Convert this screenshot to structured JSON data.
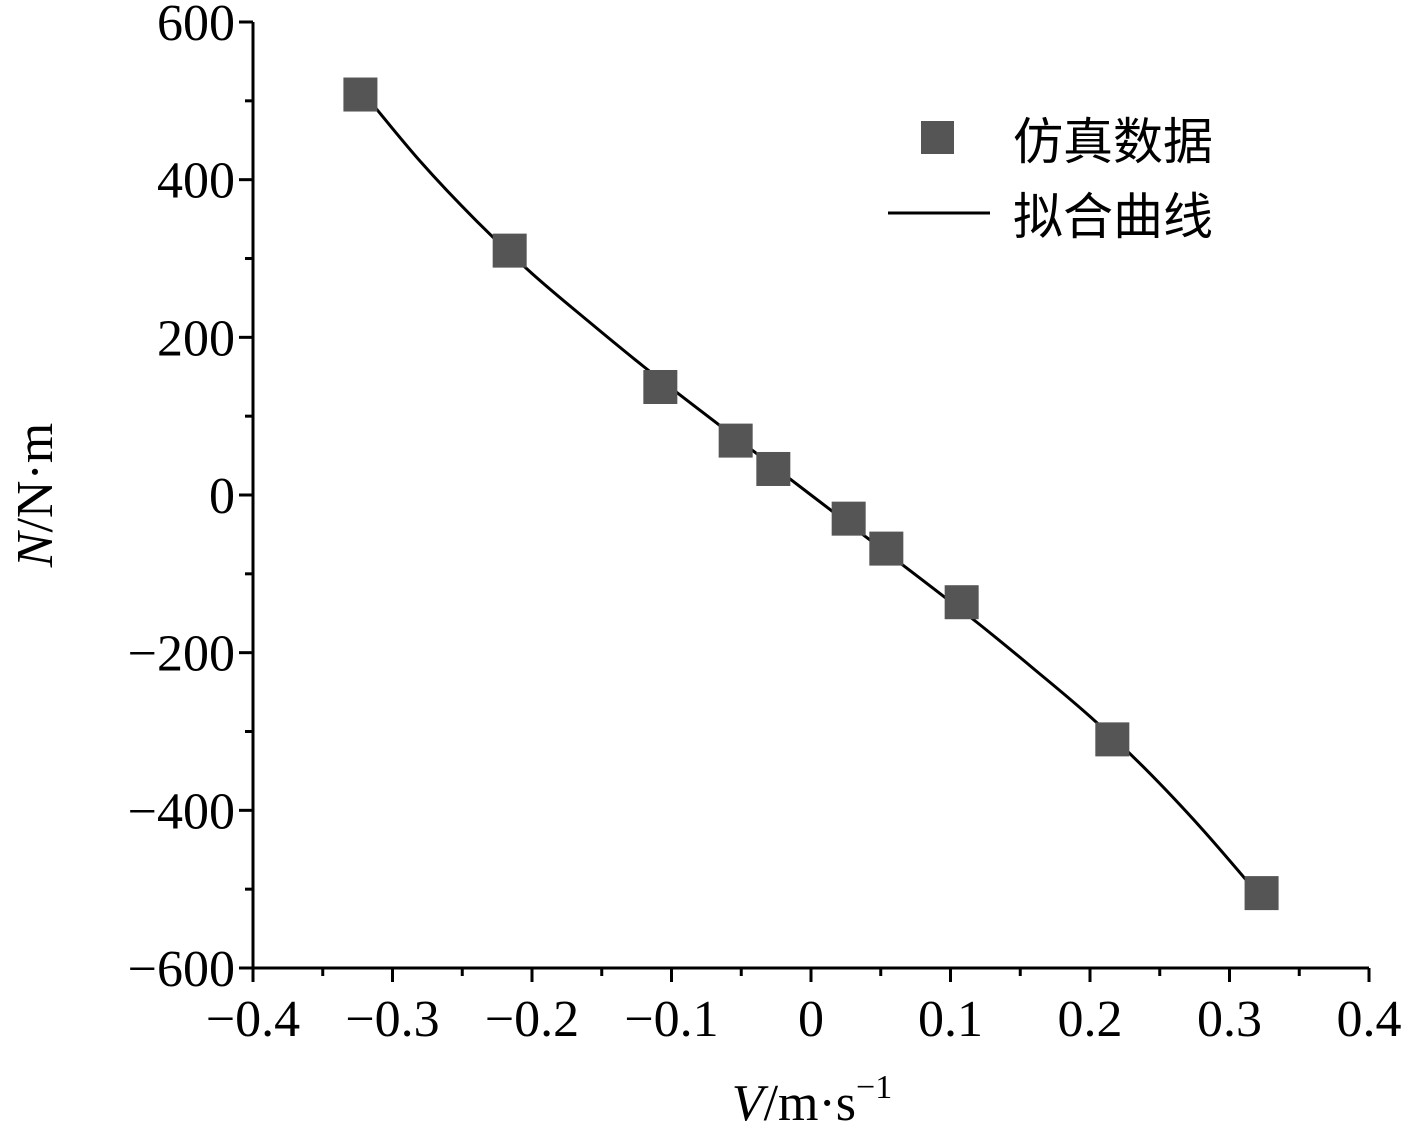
{
  "chart_data": {
    "type": "scatter",
    "title": "",
    "xlabel": {
      "symbol": "V",
      "unit": "/m·s",
      "unit_exponent": "−1"
    },
    "ylabel": {
      "symbol": "N",
      "unit": "/N·m"
    },
    "xlim": [
      -0.4,
      0.4
    ],
    "ylim": [
      -600,
      600
    ],
    "x_ticks": [
      -0.4,
      -0.3,
      -0.2,
      -0.1,
      0,
      0.1,
      0.2,
      0.3,
      0.4
    ],
    "x_tick_labels": [
      "−0.4",
      "−0.3",
      "−0.2",
      "−0.1",
      "0",
      "0.1",
      "0.2",
      "0.3",
      "0.4"
    ],
    "y_ticks": [
      600,
      400,
      200,
      0,
      -200,
      -400,
      -600
    ],
    "y_tick_labels": [
      "600",
      "400",
      "200",
      "0",
      "−200",
      "−400",
      "−600"
    ],
    "grid": false,
    "legend_position": "top-right",
    "series": [
      {
        "name": "仿真数据",
        "kind": "scatter",
        "marker": "square",
        "color": "#555555",
        "points": [
          {
            "x": -0.323,
            "y": 508
          },
          {
            "x": -0.216,
            "y": 310
          },
          {
            "x": -0.108,
            "y": 137
          },
          {
            "x": -0.054,
            "y": 69
          },
          {
            "x": -0.027,
            "y": 33
          },
          {
            "x": 0.027,
            "y": -30
          },
          {
            "x": 0.054,
            "y": -68
          },
          {
            "x": 0.108,
            "y": -136
          },
          {
            "x": 0.216,
            "y": -310
          },
          {
            "x": 0.323,
            "y": -505
          }
        ]
      },
      {
        "name": "拟合曲线",
        "kind": "line",
        "color": "#000000",
        "points": [
          {
            "x": -0.32,
            "y": 508
          },
          {
            "x": -0.28,
            "y": 423
          },
          {
            "x": -0.24,
            "y": 348
          },
          {
            "x": -0.2,
            "y": 281
          },
          {
            "x": -0.16,
            "y": 221
          },
          {
            "x": -0.12,
            "y": 163
          },
          {
            "x": -0.08,
            "y": 108
          },
          {
            "x": -0.04,
            "y": 54
          },
          {
            "x": 0.0,
            "y": 0
          },
          {
            "x": 0.04,
            "y": -54
          },
          {
            "x": 0.08,
            "y": -108
          },
          {
            "x": 0.12,
            "y": -163
          },
          {
            "x": 0.16,
            "y": -221
          },
          {
            "x": 0.2,
            "y": -281
          },
          {
            "x": 0.24,
            "y": -348
          },
          {
            "x": 0.28,
            "y": -423
          },
          {
            "x": 0.32,
            "y": -505
          }
        ]
      }
    ]
  }
}
